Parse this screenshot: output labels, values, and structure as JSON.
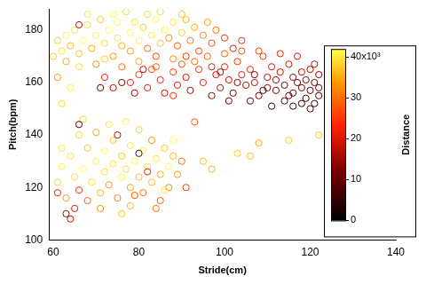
{
  "chart_data": {
    "type": "scatter",
    "x_label": "Stride(cm)",
    "y_label": "Pitch(bpm)",
    "marker": "circle_open",
    "grid": false,
    "xlim": [
      59,
      140
    ],
    "xticks": [
      60,
      80,
      100,
      120,
      140
    ],
    "ylim": [
      100,
      188
    ],
    "yticks": [
      100,
      120,
      140,
      160,
      180
    ],
    "colorbar": {
      "label": "Distance",
      "range": [
        0,
        42000
      ],
      "ticks": [
        0,
        {
          "value": 10000,
          "label": "10"
        },
        {
          "value": 20000,
          "label": "20"
        },
        {
          "value": 30000,
          "label": "30"
        },
        {
          "value": 40000,
          "label": "40x10³"
        }
      ]
    },
    "x": [
      61,
      62,
      63,
      64,
      65,
      66,
      67,
      68,
      69,
      70,
      71,
      72,
      73,
      74,
      75,
      75,
      76,
      77,
      78,
      78,
      79,
      80,
      81,
      82,
      83,
      84,
      85,
      85,
      86,
      87,
      88,
      89,
      90,
      91,
      92,
      93,
      94,
      95,
      96,
      97,
      98,
      100,
      102,
      104,
      63,
      66,
      70,
      72,
      76,
      80,
      84,
      88,
      68,
      74,
      82,
      90,
      60,
      61,
      64,
      62,
      66,
      71,
      78,
      80,
      82,
      83,
      85,
      86,
      88,
      89,
      90,
      91,
      92,
      94,
      95,
      96,
      97,
      98,
      99,
      100,
      101,
      102,
      103,
      104,
      105,
      106,
      107,
      108,
      109,
      110,
      110,
      111,
      112,
      112,
      113,
      114,
      114,
      115,
      116,
      116,
      117,
      118,
      118,
      119,
      119,
      120,
      120,
      121,
      121,
      122,
      122,
      121,
      117,
      113,
      108,
      104,
      100,
      111,
      116,
      106,
      101,
      93,
      88,
      84,
      99,
      103,
      107,
      109,
      115,
      118,
      122,
      120,
      97,
      91,
      81,
      79,
      76,
      74,
      72,
      61,
      62,
      63,
      64,
      65,
      65,
      66,
      67,
      68,
      68,
      69,
      70,
      70,
      71,
      72,
      72,
      73,
      74,
      74,
      75,
      76,
      76,
      77,
      78,
      78,
      79,
      80,
      80,
      81,
      81,
      82,
      83,
      83,
      84,
      85,
      85,
      86,
      87,
      87,
      88,
      89,
      90,
      91,
      84,
      78,
      73,
      77,
      63,
      64,
      61,
      66,
      67,
      75,
      80,
      82,
      79,
      71,
      86,
      88,
      76,
      62,
      66,
      95,
      97,
      103,
      106,
      108,
      115,
      122,
      93
    ],
    "values": [
      176,
      172,
      178,
      174,
      180,
      171,
      176,
      182,
      173,
      178,
      184,
      175,
      180,
      170,
      177,
      183,
      174,
      187,
      179,
      172,
      183,
      176,
      181,
      173,
      178,
      184,
      175,
      187,
      180,
      177,
      183,
      174,
      179,
      184,
      176,
      181,
      172,
      178,
      183,
      175,
      180,
      177,
      173,
      176,
      168,
      166,
      167,
      169,
      166,
      168,
      166,
      169,
      186,
      186,
      186,
      186,
      170,
      162,
      158,
      152,
      182,
      158,
      160,
      163,
      158,
      165,
      161,
      156,
      164,
      159,
      167,
      162,
      157,
      165,
      160,
      170,
      155,
      163,
      158,
      166,
      161,
      156,
      168,
      163,
      159,
      165,
      160,
      155,
      170,
      162,
      158,
      166,
      161,
      157,
      164,
      159,
      153,
      167,
      162,
      156,
      160,
      164,
      158,
      154,
      161,
      157,
      165,
      160,
      152,
      158,
      163,
      167,
      170,
      171,
      172,
      172,
      171,
      151,
      151,
      153,
      153,
      168,
      155,
      170,
      164,
      160,
      163,
      157,
      155,
      152,
      155,
      150,
      166,
      170,
      165,
      156,
      160,
      158,
      162,
      122,
      128,
      116,
      132,
      124,
      112,
      119,
      127,
      135,
      115,
      122,
      130,
      141,
      118,
      126,
      134,
      121,
      129,
      138,
      116,
      124,
      132,
      127,
      120,
      136,
      130,
      124,
      142,
      118,
      134,
      128,
      122,
      138,
      131,
      125,
      115,
      135,
      128,
      120,
      132,
      125,
      130,
      120,
      112,
      113,
      144,
      145,
      110,
      108,
      118,
      140,
      146,
      140,
      133,
      126,
      117,
      112,
      119,
      138,
      110,
      135,
      144,
      130,
      127,
      133,
      132,
      137,
      138,
      140,
      145
    ],
    "distance": [
      38000,
      40000,
      41000,
      36000,
      39000,
      37000,
      42000,
      40000,
      35000,
      41000,
      38000,
      39000,
      42000,
      33000,
      40000,
      41000,
      36000,
      39000,
      42000,
      34000,
      40000,
      41000,
      38000,
      30000,
      40000,
      42000,
      37000,
      39000,
      41000,
      33000,
      40000,
      28000,
      38000,
      36000,
      31000,
      35000,
      26000,
      32000,
      34000,
      27000,
      30000,
      25000,
      22000,
      24000,
      35000,
      39000,
      32000,
      38000,
      30000,
      35000,
      28000,
      33000,
      40000,
      41000,
      39000,
      37000,
      37000,
      33000,
      41000,
      39000,
      18000,
      8000,
      22000,
      25000,
      20000,
      27000,
      23000,
      18000,
      26000,
      21000,
      28000,
      19000,
      15000,
      24000,
      22000,
      29000,
      14000,
      20000,
      17000,
      23000,
      19000,
      12000,
      25000,
      21000,
      16000,
      22000,
      18000,
      11000,
      24000,
      17000,
      14000,
      20000,
      15000,
      12000,
      18000,
      13000,
      8000,
      19000,
      14000,
      10000,
      12000,
      16000,
      11000,
      7000,
      13000,
      9000,
      17000,
      11000,
      6000,
      10000,
      14000,
      18000,
      20000,
      23000,
      26000,
      27000,
      29000,
      5000,
      4000,
      9000,
      10000,
      30000,
      24000,
      26000,
      15000,
      13000,
      12000,
      8000,
      9000,
      5000,
      7000,
      8000,
      21000,
      25000,
      16000,
      14000,
      12000,
      17000,
      21000,
      38000,
      41000,
      34000,
      40000,
      39000,
      20000,
      24000,
      42000,
      37000,
      29000,
      40000,
      41000,
      35000,
      36000,
      39000,
      42000,
      33000,
      40000,
      38000,
      31000,
      41000,
      37000,
      39000,
      35000,
      40000,
      42000,
      36000,
      38000,
      30000,
      41000,
      39000,
      37000,
      33000,
      40000,
      35000,
      28000,
      38000,
      41000,
      32000,
      36000,
      34000,
      30000,
      26000,
      31000,
      36000,
      40000,
      41000,
      15000,
      18000,
      22000,
      39000,
      38000,
      17000,
      8000,
      21000,
      27000,
      33000,
      40000,
      42000,
      37000,
      40000,
      9000,
      37000,
      36000,
      38000,
      36000,
      35000,
      38000,
      37000,
      28000
    ]
  }
}
